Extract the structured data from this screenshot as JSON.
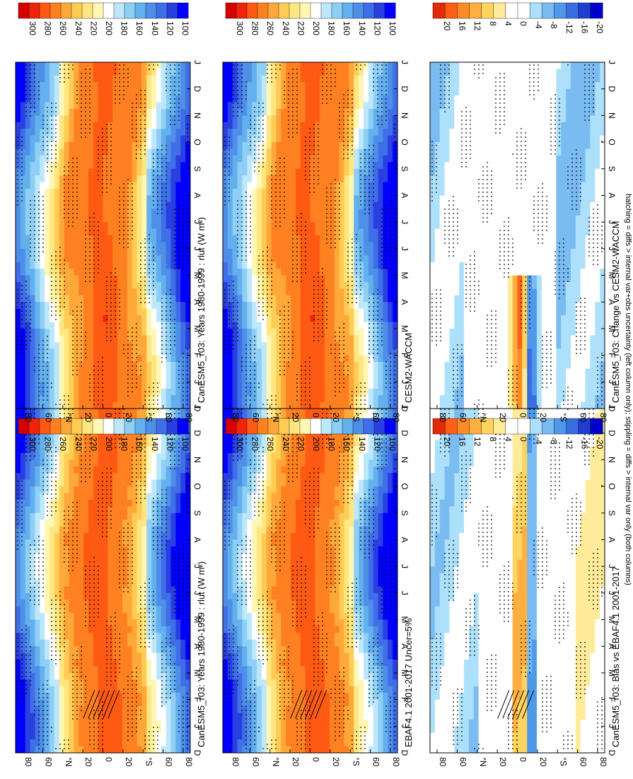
{
  "figure": {
    "orientation": "rotated 90 degrees clockwise",
    "footnote": "hatching = diffs > internal var+obs uncertainty (left column only); stippling = diffs > internal var only (both columns)"
  },
  "colors": {
    "abs_scale": [
      "#0000ff",
      "#2a3fe0",
      "#3f6fe8",
      "#4f8fe8",
      "#63b0ee",
      "#8fcff5",
      "#bde8fb",
      "#ffffff",
      "#fff7b3",
      "#ffe680",
      "#ffcc55",
      "#ffa83a",
      "#ff8020",
      "#ff5a14",
      "#f0240a",
      "#d40000"
    ],
    "diff_scale": [
      "#0000cc",
      "#1e3ed0",
      "#3a6ee0",
      "#4f98ea",
      "#7abcf2",
      "#ade0fa",
      "#ffffff",
      "#ffffff",
      "#ffeb99",
      "#ffd460",
      "#ffb040",
      "#ff8a28",
      "#ff6018",
      "#e22a08"
    ]
  },
  "chart_data": [
    {
      "type": "heatmap",
      "panel": "row1-left",
      "title": "CanESM5_r03: Years 1980-1999 : rlut (W m²)",
      "x_ticks": [
        "D",
        "J",
        "F",
        "M",
        "A",
        "M",
        "J",
        "J",
        "A",
        "S",
        "O",
        "N",
        "D",
        "J"
      ],
      "y_ticks": [
        "80",
        "60",
        "°N",
        "20",
        "0",
        "20",
        "°S",
        "60",
        "80"
      ],
      "ylim": [
        -90,
        90
      ],
      "colorbar_labels": [
        "300",
        "280",
        "260",
        "240",
        "220",
        "200",
        "180",
        "160",
        "140",
        "120",
        "100"
      ],
      "hatched": true
    },
    {
      "type": "heatmap",
      "panel": "row1-right",
      "title": "CanESM5_r03: Years 1980-1999 : rlut (W m²)",
      "x_ticks": [
        "D",
        "J",
        "F",
        "M",
        "A",
        "M",
        "J",
        "J",
        "A",
        "S",
        "O",
        "N",
        "D",
        "J"
      ],
      "y_ticks": [
        "80",
        "60",
        "°N",
        "20",
        "0",
        "20",
        "°S",
        "60",
        "80"
      ],
      "ylim": [
        -90,
        90
      ],
      "colorbar_labels": [
        "300",
        "280",
        "260",
        "240",
        "220",
        "200",
        "180",
        "160",
        "140",
        "120",
        "100"
      ],
      "hatched": false
    },
    {
      "type": "heatmap",
      "panel": "row2-left",
      "title": "EBAF4.1 2001-2017 Uncer=5%",
      "x_ticks": [
        "D",
        "J",
        "F",
        "M",
        "A",
        "M",
        "J",
        "J",
        "A",
        "S",
        "O",
        "N",
        "D",
        "J"
      ],
      "y_ticks": [
        "80",
        "60",
        "°N",
        "20",
        "0",
        "20",
        "°S",
        "60",
        "80"
      ],
      "ylim": [
        -90,
        90
      ],
      "colorbar_labels": [
        "300",
        "280",
        "260",
        "240",
        "220",
        "200",
        "180",
        "160",
        "140",
        "120",
        "100"
      ],
      "hatched": true
    },
    {
      "type": "heatmap",
      "panel": "row2-right",
      "title": "CESM2-WACCM",
      "x_ticks": [
        "D",
        "J",
        "F",
        "M",
        "A",
        "M",
        "J",
        "J",
        "A",
        "S",
        "O",
        "N",
        "D",
        "J"
      ],
      "y_ticks": [
        "80",
        "60",
        "°N",
        "20",
        "0",
        "20",
        "°S",
        "60",
        "80"
      ],
      "ylim": [
        -90,
        90
      ],
      "colorbar_labels": [
        "300",
        "280",
        "260",
        "240",
        "220",
        "200",
        "180",
        "160",
        "140",
        "120",
        "100"
      ],
      "hatched": false
    },
    {
      "type": "heatmap",
      "panel": "row3-left",
      "title": "CanESM5_r03: Bias vs EBAF4.1 2001-2017",
      "x_ticks": [
        "D",
        "J",
        "F",
        "M",
        "A",
        "M",
        "J",
        "J",
        "A",
        "S",
        "O",
        "N",
        "D",
        "J"
      ],
      "y_ticks": [
        "80",
        "60",
        "°N",
        "20",
        "0",
        "20",
        "°S",
        "60",
        "80"
      ],
      "ylim": [
        -90,
        90
      ],
      "colorbar_labels": [
        "20",
        "16",
        "12",
        "8",
        "4",
        "0",
        "-4",
        "-8",
        "-12",
        "-16",
        "-20"
      ],
      "hatched": true
    },
    {
      "type": "heatmap",
      "panel": "row3-right",
      "title": "CanESM5_r03: Change vs CESM2-WACCM",
      "x_ticks": [
        "D",
        "J",
        "F",
        "M",
        "A",
        "M",
        "J",
        "J",
        "A",
        "S",
        "O",
        "N",
        "D",
        "J"
      ],
      "y_ticks": [
        "80",
        "60",
        "°N",
        "20",
        "0",
        "20",
        "°S",
        "60",
        "80"
      ],
      "ylim": [
        -90,
        90
      ],
      "colorbar_labels": [
        "20",
        "16",
        "12",
        "8",
        "4",
        "0",
        "-4",
        "-8",
        "-12",
        "-16",
        "-20"
      ],
      "hatched": false
    }
  ]
}
